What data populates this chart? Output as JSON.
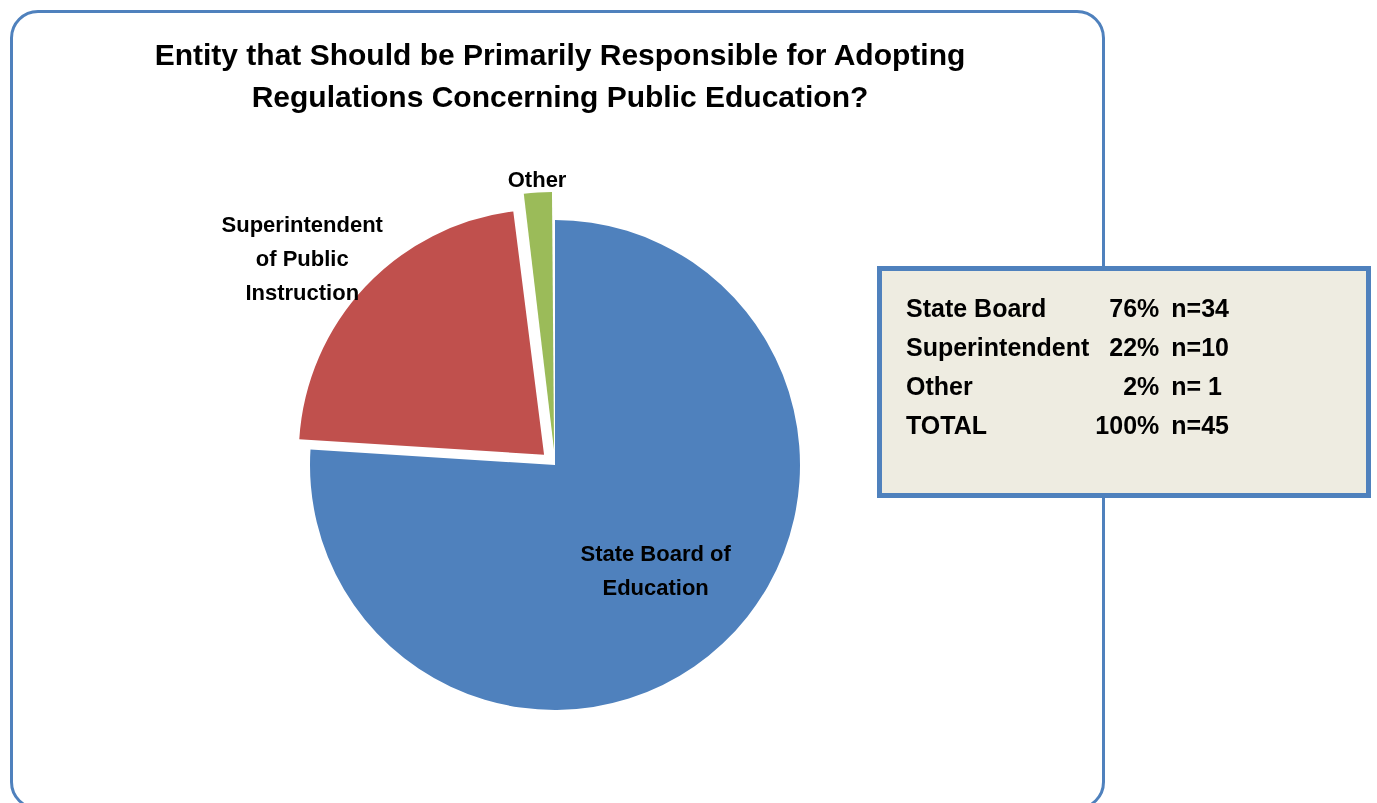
{
  "chart_data": {
    "type": "pie",
    "title": "Entity that Should be Primarily Responsible for Adopting Regulations Concerning Public Education?",
    "categories": [
      "State Board of Education",
      "Superintendent of Public Instruction",
      "Other"
    ],
    "values": [
      76,
      22,
      2
    ],
    "colors": [
      "#4f81bd",
      "#c0504d",
      "#9bbb59"
    ],
    "legend": false,
    "annotations": [
      "State Board  76%  n=34",
      "Superintendent  22%  n=10",
      "Other  2%  n= 1",
      "TOTAL  100%  n=45"
    ]
  }
}
